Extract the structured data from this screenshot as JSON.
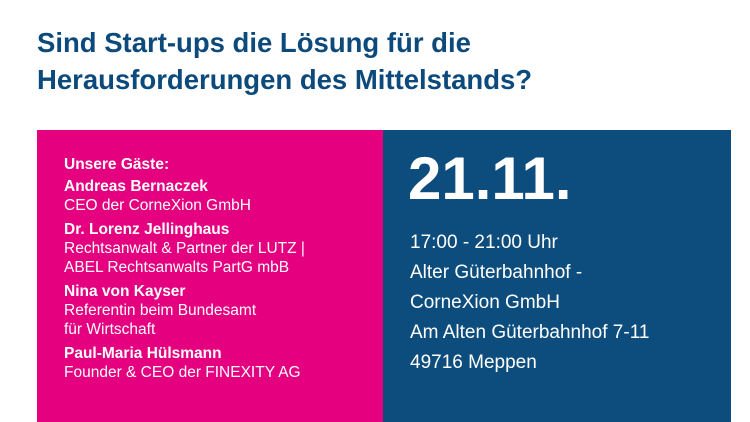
{
  "header": {
    "title_lines": [
      "Sind Start-ups die Lösung für die",
      "Herausforderungen des Mittelstands?"
    ]
  },
  "guests": {
    "heading": "Unsere Gäste:",
    "list": [
      {
        "name": "Andreas Bernaczek",
        "role_lines": [
          "CEO der CorneXion GmbH"
        ]
      },
      {
        "name": "Dr. Lorenz Jellinghaus",
        "role_lines": [
          "Rechtsanwalt & Partner der LUTZ |",
          "ABEL Rechtsanwalts PartG mbB"
        ]
      },
      {
        "name": "Nina von Kayser",
        "role_lines": [
          "Referentin beim Bundesamt",
          "für Wirtschaft"
        ]
      },
      {
        "name": "Paul-Maria Hülsmann",
        "role_lines": [
          "Founder & CEO der FINEXITY AG"
        ]
      }
    ]
  },
  "event": {
    "date": "21.11.",
    "details": [
      "17:00 - 21:00 Uhr",
      "Alter Güterbahnhof -",
      "CorneXion GmbH",
      "Am Alten Güterbahnhof 7-11",
      "49716 Meppen"
    ]
  }
}
